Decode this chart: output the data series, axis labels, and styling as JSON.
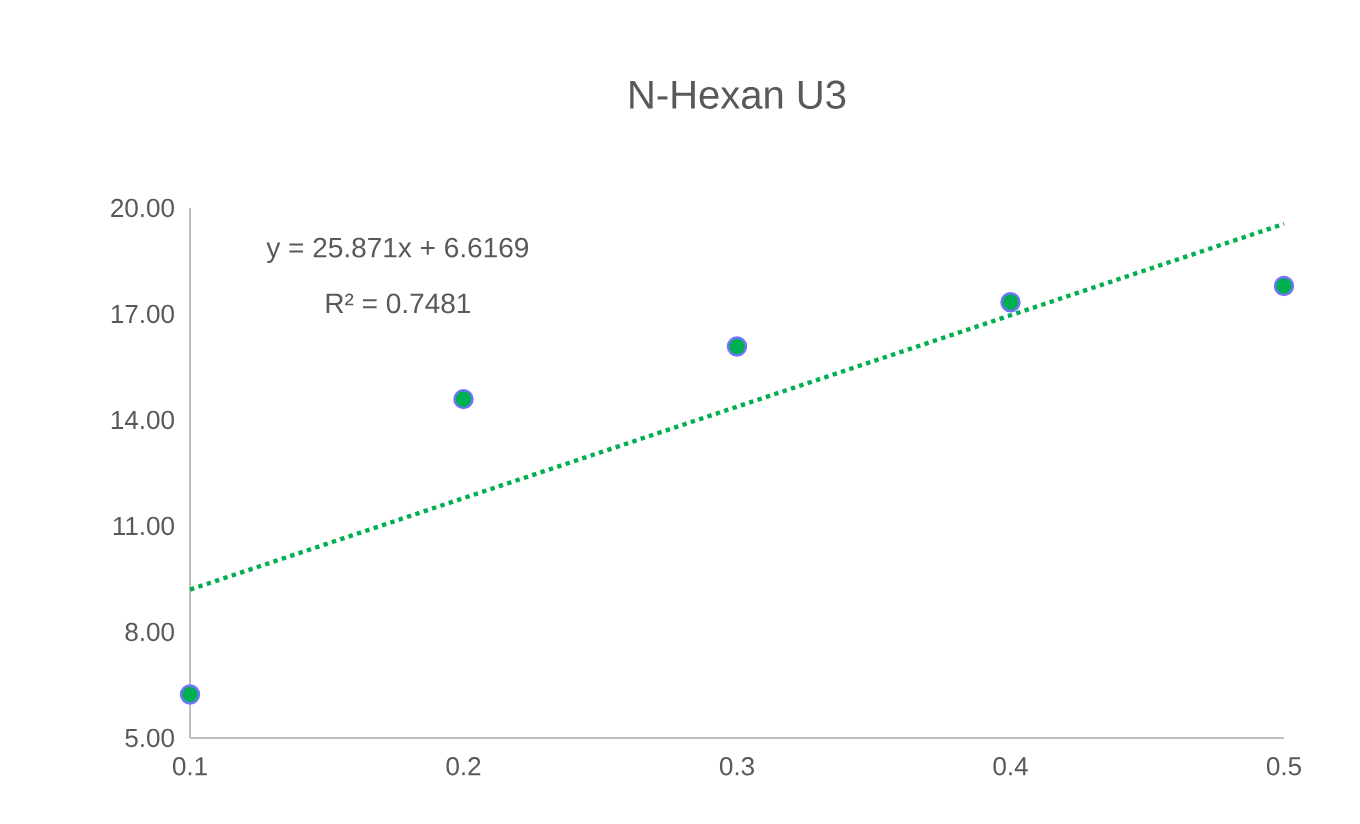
{
  "chart_data": {
    "type": "scatter",
    "title": "N-Hexan U3",
    "x": [
      0.1,
      0.2,
      0.3,
      0.4,
      0.5
    ],
    "series": [
      {
        "color": "#00b050",
        "values": [
          6.23,
          14.59,
          16.08,
          17.33,
          17.79
        ],
        "marker": "circle"
      },
      {
        "type": "line",
        "color": "#00b050",
        "x": [
          0.1,
          0.5
        ],
        "values": [
          9.2,
          19.55
        ],
        "line_style": "dotted",
        "marker": "none"
      }
    ],
    "annotations": [
      "y = 25.871x + 6.6169",
      "R² = 0.7481"
    ],
    "xlim": [
      0.1,
      0.5
    ],
    "xticks": [
      0.1,
      0.2,
      0.3,
      0.4,
      0.5
    ],
    "ylim": [
      5,
      20
    ],
    "yticks": [
      {
        "value": 5,
        "label": "5.00"
      },
      {
        "value": 8,
        "label": "8.00"
      },
      {
        "value": 11,
        "label": "11.00"
      },
      {
        "value": 14,
        "label": "14.00"
      },
      {
        "value": 17,
        "label": "17.00"
      },
      {
        "value": 20,
        "label": "20.00"
      }
    ],
    "grid": false
  }
}
